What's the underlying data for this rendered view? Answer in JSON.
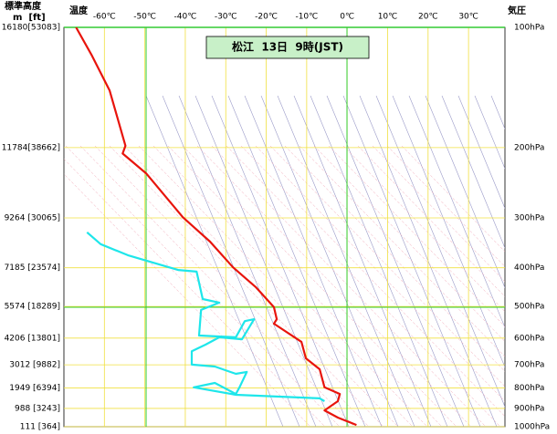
{
  "chart_data": {
    "type": "line",
    "title": "松江  13日  9時(JST)",
    "x_label": "温度",
    "y_label": "気圧",
    "height_label": "標準高度",
    "height_unit": "m  [ft]",
    "xlim": [
      -70,
      39
    ],
    "xticks": [
      {
        "value": -60,
        "label": "-60℃"
      },
      {
        "value": -50,
        "label": "-50℃"
      },
      {
        "value": -40,
        "label": "-40℃"
      },
      {
        "value": -30,
        "label": "-30℃"
      },
      {
        "value": -20,
        "label": "-20℃"
      },
      {
        "value": -10,
        "label": "-10℃"
      },
      {
        "value": 0,
        "label": "0℃"
      },
      {
        "value": 10,
        "label": "10℃"
      },
      {
        "value": 20,
        "label": "20℃"
      },
      {
        "value": 30,
        "label": "30℃"
      }
    ],
    "ylim": [
      100,
      1000
    ],
    "y_log": true,
    "y_inverted": true,
    "yticks": [
      {
        "value": 100,
        "label": "100hPa"
      },
      {
        "value": 200,
        "label": "200hPa"
      },
      {
        "value": 300,
        "label": "300hPa"
      },
      {
        "value": 400,
        "label": "400hPa"
      },
      {
        "value": 500,
        "label": "500hPa"
      },
      {
        "value": 600,
        "label": "600hPa"
      },
      {
        "value": 700,
        "label": "700hPa"
      },
      {
        "value": 800,
        "label": "800hPa"
      },
      {
        "value": 900,
        "label": "900hPa"
      },
      {
        "value": 1000,
        "label": "1000hPa"
      }
    ],
    "height_labels": [
      "16180[53083]",
      "11784[38662]",
      "9264 [30065]",
      "7185 [23574]",
      "5574 [18289]",
      "4206 [13801]",
      "3012 [9882]",
      "1949 [6394]",
      "988 [3243]",
      "111 [364]"
    ],
    "grid": true,
    "series": [
      {
        "color": "#e8140c",
        "x": [
          -67.0,
          -63.2,
          -58.7,
          -54.8,
          -55.5,
          -49.7,
          -40.6,
          -33.9,
          -28.2,
          -22.6,
          -18.1,
          -17.4,
          -18.1,
          -11.3,
          -10.2,
          -6.8,
          -5.6,
          -1.8,
          -2.3,
          -5.6,
          -2.3,
          2.3
        ],
        "values": [
          100,
          117,
          144,
          198,
          207,
          232,
          299,
          344,
          399,
          447,
          502,
          538,
          552,
          613,
          674,
          718,
          797,
          828,
          863,
          910,
          949,
          990
        ]
      },
      {
        "color": "#1ee6ea",
        "x": [
          -64.3,
          -60.9,
          -54.2,
          -41.8,
          -37.2,
          -35.7,
          -31.6,
          -36.1,
          -36.6,
          -27.5,
          -25.3,
          -23.0,
          -26.0,
          -31.6,
          -35.0,
          -38.4,
          -38.4,
          -32.7,
          -27.5,
          -24.8,
          -26.6,
          -27.5,
          -32.7,
          -37.9,
          -27.5,
          -6.8,
          -5.6
        ],
        "values": [
          326,
          349,
          372,
          405,
          409,
          479,
          489,
          510,
          591,
          597,
          544,
          538,
          604,
          597,
          623,
          647,
          699,
          707,
          737,
          729,
          797,
          828,
          777,
          797,
          832,
          849,
          863
        ]
      }
    ]
  }
}
